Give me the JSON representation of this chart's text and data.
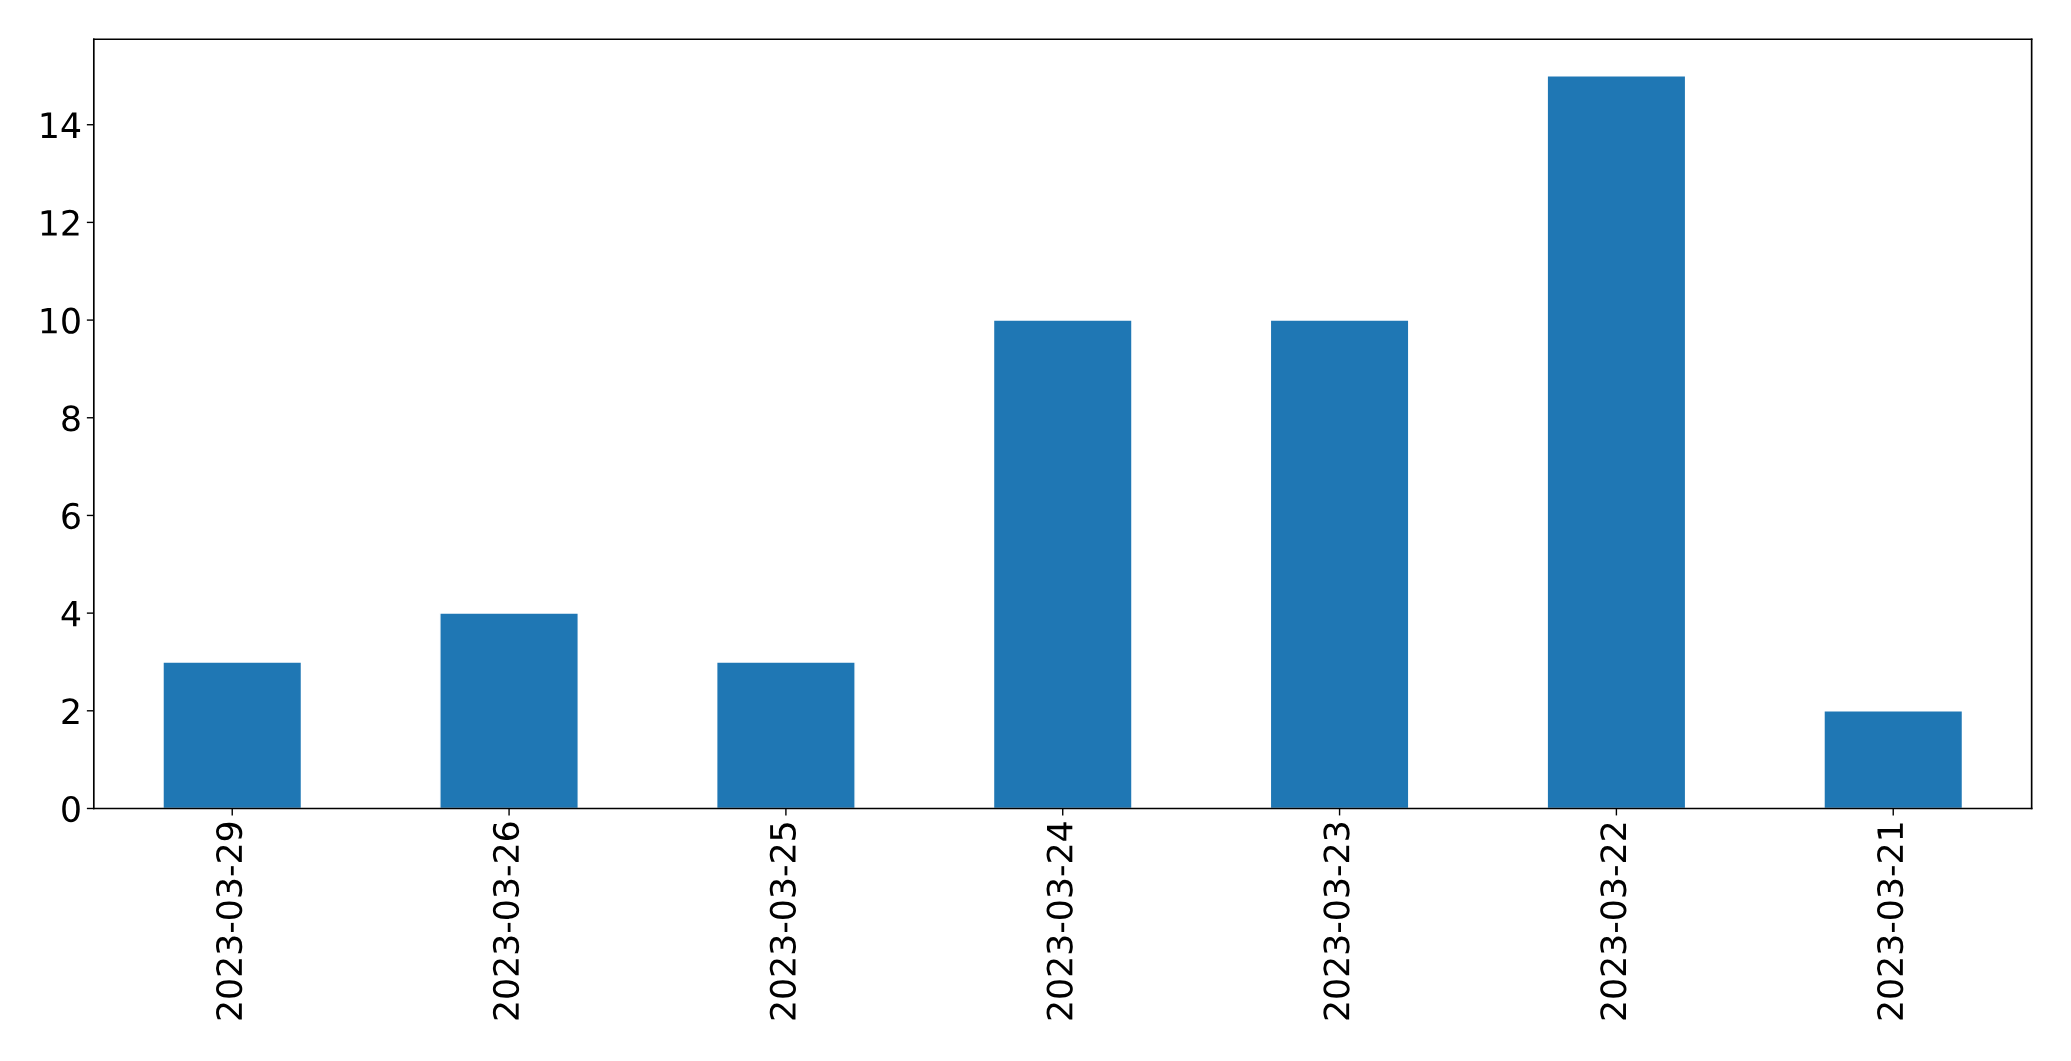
{
  "chart_data": {
    "type": "bar",
    "categories": [
      "2023-03-29",
      "2023-03-26",
      "2023-03-25",
      "2023-03-24",
      "2023-03-23",
      "2023-03-22",
      "2023-03-21"
    ],
    "values": [
      3,
      4,
      3,
      10,
      10,
      15,
      2
    ],
    "color": "#1f77b4",
    "ylim": [
      0,
      15.75
    ],
    "yticks": [
      0,
      2,
      4,
      6,
      8,
      10,
      12,
      14
    ],
    "grid": false
  }
}
